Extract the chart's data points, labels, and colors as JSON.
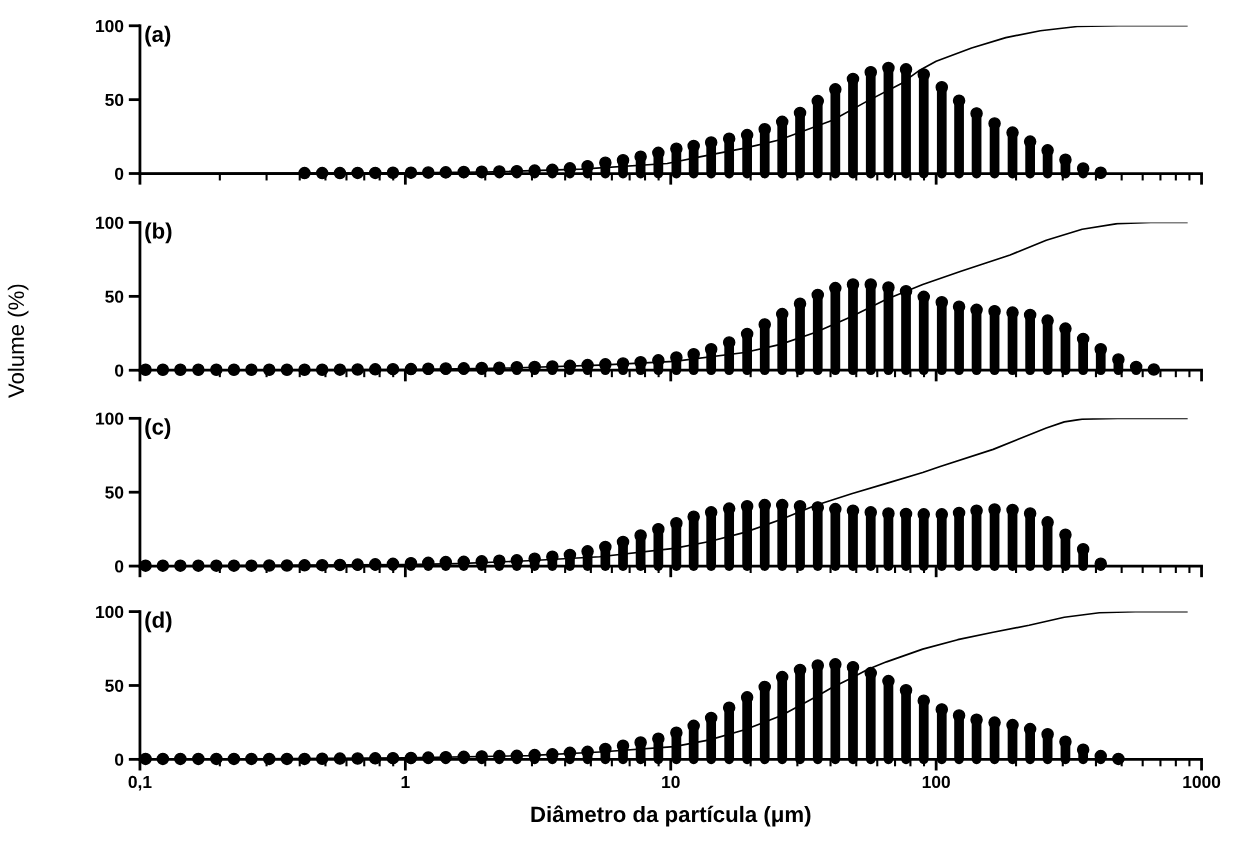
{
  "chart_data": [
    {
      "type": "lollipop",
      "annotations": [
        "(a)"
      ],
      "xlim": [
        0.1,
        1000
      ],
      "xticks": [
        0.1,
        1,
        10,
        100,
        1000
      ],
      "ylim": [
        0,
        100
      ],
      "yticks": [
        0,
        50,
        100
      ],
      "log": "x",
      "tick_labels": "y",
      "series": [
        {
          "marker": "circle",
          "color": "#000000",
          "x": [
            0.417,
            0.486,
            0.567,
            0.661,
            0.77,
            0.898,
            1.05,
            1.22,
            1.42,
            1.66,
            1.94,
            2.26,
            2.63,
            3.07,
            3.58,
            4.17,
            4.86,
            5.67,
            6.61,
            7.7,
            8.98,
            10.5,
            12.2,
            14.2,
            16.6,
            19.4,
            22.6,
            26.3,
            30.7,
            35.8,
            41.7,
            48.6,
            56.7,
            66.1,
            77,
            89.8,
            105,
            122,
            142,
            166,
            194,
            226,
            263,
            307,
            358,
            417
          ],
          "values": [
            0.3,
            0.3,
            0.3,
            0.4,
            0.4,
            0.5,
            0.6,
            0.7,
            0.8,
            1,
            1.2,
            1.4,
            1.6,
            2,
            2.5,
            3.5,
            5,
            7.3,
            9,
            11.4,
            14,
            16.8,
            18.6,
            21,
            23.6,
            26,
            30,
            35,
            41,
            49,
            57,
            64,
            68.6,
            71.4,
            70.5,
            67,
            58.4,
            49.3,
            40.7,
            33.9,
            27.7,
            21.6,
            15.7,
            9.3,
            3.4,
            0.5
          ]
        },
        {
          "type": "line",
          "color": "#000000",
          "x": [
            0.1,
            1,
            2,
            4.6,
            9.7,
            13,
            18.8,
            25.6,
            40.7,
            55,
            74,
            86,
            100,
            136,
            183,
            247,
            340,
            487,
            880
          ],
          "values": [
            0,
            0.5,
            1,
            3,
            6.8,
            11.4,
            17,
            22.7,
            36,
            49,
            61,
            69.5,
            76,
            85,
            92,
            96.6,
            99.5,
            100,
            100
          ]
        }
      ]
    },
    {
      "type": "lollipop",
      "annotations": [
        "(b)"
      ],
      "ylabel": "Volume (%)",
      "xlim": [
        0.1,
        1000
      ],
      "xticks": [
        0.1,
        1,
        10,
        100,
        1000
      ],
      "ylim": [
        0,
        100
      ],
      "yticks": [
        0,
        50,
        100
      ],
      "log": "x",
      "tick_labels": "y",
      "series": [
        {
          "marker": "circle",
          "color": "#000000",
          "x": [
            0.105,
            0.122,
            0.142,
            0.166,
            0.194,
            0.226,
            0.263,
            0.307,
            0.358,
            0.417,
            0.486,
            0.567,
            0.661,
            0.77,
            0.898,
            1.05,
            1.22,
            1.42,
            1.66,
            1.94,
            2.26,
            2.63,
            3.07,
            3.58,
            4.17,
            4.86,
            5.67,
            6.61,
            7.7,
            8.98,
            10.5,
            12.2,
            14.2,
            16.6,
            19.4,
            22.6,
            26.3,
            30.7,
            35.8,
            41.7,
            48.6,
            56.7,
            66.1,
            77,
            89.8,
            105,
            122,
            142,
            166,
            194,
            226,
            263,
            307,
            358,
            417,
            486,
            567,
            661
          ],
          "values": [
            0.3,
            0.3,
            0.3,
            0.3,
            0.3,
            0.3,
            0.3,
            0.3,
            0.3,
            0.3,
            0.3,
            0.4,
            0.5,
            0.6,
            0.7,
            0.8,
            1,
            1.2,
            1.3,
            1.5,
            1.7,
            2,
            2.2,
            2.5,
            3,
            3.5,
            4,
            4.6,
            5.4,
            6.7,
            8.6,
            10.8,
            14.2,
            18.8,
            24.5,
            31,
            38,
            45,
            51,
            55.6,
            58,
            58,
            56,
            53.5,
            49.7,
            46,
            43,
            40.9,
            40,
            39,
            37.4,
            33.6,
            28.2,
            21.2,
            14.2,
            7.3,
            2.2,
            0.5
          ]
        },
        {
          "type": "line",
          "color": "#000000",
          "x": [
            0.1,
            1,
            2.5,
            5.4,
            10.3,
            19,
            25.9,
            35,
            47.6,
            65,
            89,
            124,
            190,
            260,
            355,
            482,
            644,
            880
          ],
          "values": [
            0,
            0.5,
            1.5,
            3.5,
            6,
            12,
            17.5,
            25.5,
            36,
            48,
            58,
            67,
            78,
            88,
            95.4,
            99.2,
            100,
            100
          ]
        }
      ]
    },
    {
      "type": "lollipop",
      "annotations": [
        "(c)"
      ],
      "xlim": [
        0.1,
        1000
      ],
      "xticks": [
        0.1,
        1,
        10,
        100,
        1000
      ],
      "ylim": [
        0,
        100
      ],
      "yticks": [
        0,
        50,
        100
      ],
      "log": "x",
      "tick_labels": "y",
      "series": [
        {
          "marker": "circle",
          "color": "#000000",
          "x": [
            0.105,
            0.122,
            0.142,
            0.166,
            0.194,
            0.226,
            0.263,
            0.307,
            0.358,
            0.417,
            0.486,
            0.567,
            0.661,
            0.77,
            0.898,
            1.05,
            1.22,
            1.42,
            1.66,
            1.94,
            2.26,
            2.63,
            3.07,
            3.58,
            4.17,
            4.86,
            5.67,
            6.61,
            7.7,
            8.98,
            10.5,
            12.2,
            14.2,
            16.6,
            19.4,
            22.6,
            26.3,
            30.7,
            35.8,
            41.7,
            48.6,
            56.7,
            66.1,
            77,
            89.8,
            105,
            122,
            142,
            166,
            194,
            226,
            263,
            307,
            358,
            417
          ],
          "values": [
            0.3,
            0.3,
            0.3,
            0.3,
            0.3,
            0.3,
            0.3,
            0.4,
            0.4,
            0.5,
            0.6,
            0.8,
            1,
            1.2,
            1.5,
            2,
            2.2,
            2.7,
            2.9,
            3.2,
            3.6,
            3.9,
            5,
            6.3,
            7.5,
            10,
            12.9,
            16.3,
            20.7,
            25,
            29,
            33.4,
            36.4,
            38.9,
            40.5,
            41.3,
            41.3,
            40.5,
            39.7,
            38.6,
            37.5,
            36.4,
            35.6,
            35.3,
            35,
            35,
            36,
            37.5,
            38.3,
            38,
            35.6,
            29.6,
            21.2,
            11.4,
            1.6
          ]
        },
        {
          "type": "line",
          "color": "#000000",
          "x": [
            0.1,
            1,
            1.57,
            2.9,
            5.4,
            10.3,
            14,
            19,
            26,
            35,
            48,
            65,
            89,
            103.6,
            164,
            260,
            304,
            355,
            482,
            880
          ],
          "values": [
            0,
            1,
            1.7,
            3.6,
            6.3,
            12,
            16.6,
            22.8,
            31.5,
            41,
            49,
            56,
            63.3,
            67.4,
            79,
            93.5,
            97.6,
            99.5,
            100,
            100
          ]
        }
      ]
    },
    {
      "type": "lollipop",
      "annotations": [
        "(d)"
      ],
      "xlabel": "Diâmetro da partícula (μm)",
      "xlim": [
        0.1,
        1000
      ],
      "xticks": [
        {
          "value": 0.1,
          "label": "0,1"
        },
        1,
        10,
        100,
        1000
      ],
      "ylim": [
        0,
        100
      ],
      "yticks": [
        0,
        50,
        100
      ],
      "log": "x",
      "series": [
        {
          "marker": "circle",
          "color": "#000000",
          "x": [
            0.105,
            0.122,
            0.142,
            0.166,
            0.194,
            0.226,
            0.263,
            0.307,
            0.358,
            0.417,
            0.486,
            0.567,
            0.661,
            0.77,
            0.898,
            1.05,
            1.22,
            1.42,
            1.66,
            1.94,
            2.26,
            2.63,
            3.07,
            3.58,
            4.17,
            4.86,
            5.67,
            6.61,
            7.7,
            8.98,
            10.5,
            12.2,
            14.2,
            16.6,
            19.4,
            22.6,
            26.3,
            30.7,
            35.8,
            41.7,
            48.6,
            56.7,
            66.1,
            77,
            89.8,
            105,
            122,
            142,
            166,
            194,
            226,
            263,
            307,
            358,
            417,
            486
          ],
          "values": [
            0.3,
            0.3,
            0.3,
            0.3,
            0.3,
            0.3,
            0.3,
            0.3,
            0.3,
            0.3,
            0.4,
            0.5,
            0.6,
            0.7,
            0.8,
            1,
            1.2,
            1.5,
            1.7,
            2,
            2.2,
            2.4,
            2.9,
            3.4,
            4.4,
            5.1,
            7,
            9.2,
            11.4,
            14,
            18,
            22.7,
            28,
            35,
            42,
            49,
            55.7,
            60.5,
            63.5,
            64.3,
            62.4,
            58.4,
            53,
            46.8,
            39.7,
            33.8,
            29.7,
            26.8,
            24.9,
            23.2,
            20.5,
            17,
            11.9,
            6.5,
            2.2,
            0.3
          ]
        },
        {
          "type": "line",
          "color": "#000000",
          "x": [
            0.1,
            1,
            2.9,
            5.4,
            10.3,
            14,
            19,
            26,
            35,
            40.4,
            48,
            55.4,
            65,
            89,
            120.6,
            164,
            224,
            304,
            412,
            563,
            880
          ],
          "values": [
            0,
            1,
            2.5,
            5,
            8.6,
            13.2,
            20,
            29.5,
            42,
            48.4,
            55,
            61,
            66,
            74.6,
            81,
            86,
            90.8,
            96.2,
            99.2,
            100,
            100
          ]
        }
      ]
    }
  ]
}
